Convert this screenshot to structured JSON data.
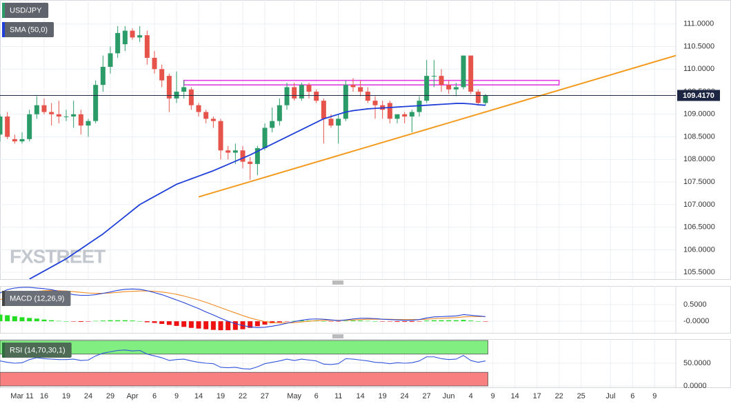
{
  "chart_data": [
    {
      "type": "candlestick",
      "title": "USD/JPY",
      "categories": [
        null,
        null,
        null,
        "Mar 11",
        null,
        null,
        "16",
        null,
        null,
        "19",
        null,
        null,
        "24",
        null,
        null,
        "29",
        null,
        null,
        "Apr",
        null,
        null,
        "6",
        null,
        null,
        "9",
        null,
        null,
        "14",
        null,
        null,
        "19",
        null,
        null,
        "22",
        null,
        null,
        "27",
        null,
        null,
        null,
        "May",
        null,
        null,
        "6",
        null,
        null,
        "11",
        null,
        null,
        "14",
        null,
        null,
        "19",
        null,
        null,
        "24",
        null,
        null,
        "27",
        null,
        null,
        "Jun",
        null,
        null,
        "4",
        null,
        null,
        "9",
        null,
        null,
        "14",
        null,
        null,
        "17",
        null,
        null,
        "22",
        null,
        null,
        "25",
        null,
        null,
        null,
        "Jul",
        null,
        null,
        "6",
        null,
        null,
        "9",
        null,
        null
      ],
      "open": [
        108.55,
        108.95,
        108.45,
        108.4,
        108.45,
        109.0,
        109.2,
        109.05,
        109.0,
        108.95,
        108.95,
        109.0,
        108.75,
        108.85,
        109.65,
        110.05,
        110.35,
        110.55,
        110.85,
        110.7,
        110.75,
        110.25,
        110.0,
        109.85,
        109.35,
        109.5,
        109.55,
        109.2,
        109.05,
        108.9,
        108.85,
        108.2,
        108.15,
        108.2,
        107.95,
        107.9,
        108.25,
        108.7,
        108.85,
        109.2,
        109.6,
        109.35,
        109.65,
        109.5,
        109.3,
        108.9,
        108.75,
        108.9,
        109.65,
        109.6,
        109.5,
        109.3,
        109.2,
        109.25,
        108.9,
        109.0,
        108.95,
        109.05,
        109.3,
        109.85,
        109.85,
        109.65,
        109.55,
        109.6,
        110.3,
        109.5,
        109.25,
        null,
        null,
        null,
        null,
        null,
        null,
        null,
        null,
        null,
        null,
        null,
        null,
        null,
        null,
        null,
        null,
        null,
        null,
        null,
        null,
        null,
        null,
        null,
        null,
        null
      ],
      "high": [
        109.0,
        109.05,
        108.55,
        108.6,
        109.1,
        109.4,
        109.35,
        109.25,
        109.3,
        109.1,
        109.3,
        109.1,
        108.9,
        109.75,
        110.3,
        110.5,
        110.95,
        110.95,
        110.9,
        110.95,
        110.85,
        110.4,
        110.1,
        109.9,
        109.95,
        109.75,
        109.6,
        109.25,
        109.1,
        108.95,
        108.9,
        108.3,
        108.35,
        108.3,
        108.05,
        108.3,
        108.8,
        109.15,
        109.35,
        109.7,
        109.7,
        109.7,
        109.7,
        109.55,
        109.35,
        109.0,
        109.0,
        109.75,
        109.8,
        109.75,
        109.6,
        109.4,
        109.3,
        109.3,
        109.0,
        109.05,
        109.1,
        109.4,
        110.2,
        110.2,
        110.0,
        109.75,
        109.7,
        110.3,
        110.3,
        109.55,
        109.45,
        null,
        null,
        null,
        null,
        null,
        null,
        null,
        null,
        null,
        null,
        null,
        null,
        null,
        null,
        null,
        null,
        null,
        null,
        null,
        null,
        null,
        null,
        null,
        null,
        null
      ],
      "low": [
        108.4,
        108.45,
        108.35,
        108.35,
        108.4,
        108.9,
        109.0,
        108.75,
        108.8,
        108.85,
        108.7,
        108.55,
        108.5,
        108.8,
        109.5,
        109.9,
        110.25,
        110.4,
        110.65,
        110.6,
        110.1,
        109.9,
        109.6,
        109.05,
        109.25,
        109.35,
        109.1,
        108.95,
        108.8,
        108.7,
        108.0,
        108.0,
        107.9,
        107.8,
        107.55,
        107.65,
        108.2,
        108.6,
        108.75,
        109.1,
        109.3,
        109.3,
        109.35,
        109.25,
        108.35,
        108.7,
        108.35,
        108.85,
        109.5,
        109.4,
        109.25,
        108.9,
        108.9,
        108.8,
        108.8,
        108.8,
        108.6,
        108.95,
        109.25,
        109.6,
        109.5,
        109.45,
        109.4,
        109.55,
        109.45,
        109.2,
        109.2,
        null,
        null,
        null,
        null,
        null,
        null,
        null,
        null,
        null,
        null,
        null,
        null,
        null,
        null,
        null,
        null,
        null,
        null,
        null,
        null,
        null,
        null,
        null,
        null,
        null
      ],
      "close": [
        108.95,
        108.5,
        108.4,
        108.45,
        109.0,
        109.2,
        109.05,
        109.0,
        108.95,
        108.95,
        109.0,
        108.75,
        108.85,
        109.65,
        110.05,
        110.35,
        110.8,
        110.85,
        110.7,
        110.75,
        110.25,
        110.0,
        109.75,
        109.35,
        109.5,
        109.6,
        109.2,
        109.05,
        108.9,
        108.85,
        108.2,
        108.15,
        108.2,
        107.95,
        107.9,
        108.25,
        108.7,
        108.85,
        109.2,
        109.6,
        109.35,
        109.65,
        109.5,
        109.3,
        108.9,
        108.75,
        108.9,
        109.65,
        109.6,
        109.5,
        109.3,
        109.2,
        109.1,
        108.9,
        109.0,
        108.95,
        109.05,
        109.3,
        109.85,
        109.85,
        109.65,
        109.55,
        109.6,
        110.3,
        109.5,
        109.25,
        109.42,
        null,
        null,
        null,
        null,
        null,
        null,
        null,
        null,
        null,
        null,
        null,
        null,
        null,
        null,
        null,
        null,
        null,
        null,
        null,
        null,
        null,
        null,
        null,
        null,
        null
      ],
      "up_color": "#2b9b68",
      "down_color": "#e5534b",
      "ylim": [
        105.35,
        111.53
      ],
      "yticks": [
        {
          "value": 105.5,
          "label": "105.5000"
        },
        {
          "value": 106,
          "label": "106.0000"
        },
        {
          "value": 106.5,
          "label": "106.5000"
        },
        {
          "value": 107,
          "label": "107.0000"
        },
        {
          "value": 107.5,
          "label": "107.5000"
        },
        {
          "value": 108,
          "label": "108.0000"
        },
        {
          "value": 108.5,
          "label": "108.5000"
        },
        {
          "value": 109,
          "label": "109.0000"
        },
        {
          "value": 109.5,
          "label": "109.5000"
        },
        {
          "value": 110,
          "label": "110.0000"
        },
        {
          "value": 110.5,
          "label": "110.5000"
        },
        {
          "value": 111,
          "label": "111.0000"
        }
      ],
      "grid": true,
      "overlays": [
        {
          "name": "SMA (50,0)",
          "color": "#1f3fd8",
          "values": [
            null,
            null,
            null,
            null,
            105.35,
            105.44,
            105.53,
            105.62,
            105.71,
            105.8,
            105.91,
            106.02,
            106.13,
            106.24,
            106.35,
            106.48,
            106.61,
            106.74,
            106.87,
            107.0,
            107.09,
            107.18,
            107.27,
            107.36,
            107.45,
            107.51,
            107.57,
            107.63,
            107.69,
            107.75,
            107.82,
            107.89,
            107.96,
            108.03,
            108.1,
            108.18,
            108.26,
            108.34,
            108.42,
            108.5,
            108.58,
            108.66,
            108.74,
            108.82,
            108.9,
            108.95,
            109.0,
            109.05,
            109.08,
            109.1,
            109.12,
            109.13,
            109.14,
            109.15,
            109.16,
            109.17,
            109.18,
            109.19,
            109.2,
            109.21,
            109.22,
            109.23,
            109.24,
            109.24,
            109.23,
            109.21,
            109.2,
            null,
            null,
            null,
            null,
            null,
            null,
            null,
            null,
            null,
            null,
            null,
            null,
            null,
            null,
            null,
            null,
            null,
            null,
            null,
            null,
            null,
            null,
            null,
            null,
            null
          ]
        }
      ],
      "last_price": {
        "value": 109.417,
        "label": "109.4170",
        "color": "#1c2541"
      },
      "resistance": {
        "upper": 109.75,
        "lower": 109.65,
        "color": "#e33be3"
      },
      "trendline": {
        "color": "#f39a1e",
        "values": [
          107.17,
          110.3
        ]
      },
      "watermark": "FXSTREET"
    },
    {
      "type": "macd",
      "title": "MACD (12,26,9)",
      "ylim": [
        -0.35,
        1.06
      ],
      "yticks": [
        {
          "value": 0.5,
          "label": "0.5000"
        },
        {
          "value": 0,
          "label": "-0.0000"
        }
      ],
      "macd": {
        "color": "#2443d6",
        "values": [
          0.85,
          0.95,
          1.0,
          1.02,
          1.02,
          1.0,
          0.98,
          0.95,
          0.9,
          0.85,
          0.8,
          0.78,
          0.78,
          0.8,
          0.84,
          0.88,
          0.93,
          0.96,
          0.97,
          0.96,
          0.92,
          0.86,
          0.8,
          0.72,
          0.64,
          0.56,
          0.47,
          0.38,
          0.28,
          0.19,
          0.09,
          0.0,
          -0.07,
          -0.13,
          -0.17,
          -0.19,
          -0.18,
          -0.15,
          -0.11,
          -0.06,
          -0.01,
          0.03,
          0.06,
          0.07,
          0.06,
          0.04,
          0.02,
          0.04,
          0.07,
          0.09,
          0.09,
          0.08,
          0.06,
          0.05,
          0.04,
          0.03,
          0.03,
          0.05,
          0.1,
          0.13,
          0.14,
          0.15,
          0.16,
          0.2,
          0.18,
          0.16,
          0.14,
          null,
          null,
          null,
          null,
          null,
          null,
          null,
          null,
          null,
          null,
          null,
          null,
          null,
          null,
          null,
          null,
          null,
          null,
          null,
          null,
          null,
          null,
          null,
          null,
          null
        ]
      },
      "signal": {
        "color": "#f08a24",
        "values": [
          0.65,
          0.72,
          0.78,
          0.83,
          0.87,
          0.9,
          0.92,
          0.93,
          0.92,
          0.91,
          0.89,
          0.87,
          0.85,
          0.84,
          0.84,
          0.85,
          0.87,
          0.89,
          0.9,
          0.91,
          0.91,
          0.9,
          0.88,
          0.85,
          0.81,
          0.76,
          0.7,
          0.64,
          0.57,
          0.49,
          0.41,
          0.33,
          0.25,
          0.17,
          0.1,
          0.04,
          -0.01,
          -0.04,
          -0.05,
          -0.05,
          -0.04,
          -0.02,
          0.0,
          0.02,
          0.03,
          0.03,
          0.03,
          0.03,
          0.04,
          0.05,
          0.06,
          0.06,
          0.06,
          0.06,
          0.05,
          0.05,
          0.05,
          0.05,
          0.06,
          0.08,
          0.09,
          0.1,
          0.11,
          0.13,
          0.14,
          0.14,
          0.14,
          null,
          null,
          null,
          null,
          null,
          null,
          null,
          null,
          null,
          null,
          null,
          null,
          null,
          null,
          null,
          null,
          null,
          null,
          null,
          null,
          null,
          null,
          null,
          null,
          null
        ]
      },
      "histogram": {
        "up_color": "#22dd22",
        "down_color": "#ee1111",
        "values": [
          0.2,
          0.18,
          0.15,
          0.12,
          0.1,
          0.08,
          0.05,
          0.03,
          0.01,
          0.0,
          -0.01,
          -0.02,
          -0.01,
          0.01,
          0.02,
          0.03,
          0.03,
          0.03,
          0.02,
          0.0,
          -0.03,
          -0.05,
          -0.08,
          -0.11,
          -0.14,
          -0.17,
          -0.2,
          -0.22,
          -0.24,
          -0.26,
          -0.27,
          -0.27,
          -0.26,
          -0.24,
          -0.2,
          -0.15,
          -0.1,
          -0.06,
          -0.03,
          -0.01,
          0.01,
          0.02,
          0.02,
          0.01,
          0.0,
          -0.01,
          -0.01,
          0.01,
          0.02,
          0.02,
          0.01,
          0.0,
          -0.01,
          -0.01,
          -0.02,
          -0.02,
          -0.02,
          -0.01,
          0.02,
          0.03,
          0.03,
          0.03,
          0.03,
          0.04,
          0.02,
          0.0,
          -0.01,
          null,
          null,
          null,
          null,
          null,
          null,
          null,
          null,
          null,
          null,
          null,
          null,
          null,
          null,
          null,
          null,
          null,
          null,
          null,
          null,
          null,
          null,
          null,
          null,
          null
        ]
      }
    },
    {
      "type": "rsi",
      "title": "RSI (14,70,30,1)",
      "ylim": [
        -3,
        103
      ],
      "yticks": [
        {
          "value": 50,
          "label": "50.0000"
        },
        {
          "value": 0,
          "label": "0.0000"
        }
      ],
      "color": "#3355dd",
      "bands": [
        {
          "from": 70,
          "to": 100,
          "color": "#80ee80"
        },
        {
          "from": 0,
          "to": 30,
          "color": "#f88080"
        }
      ],
      "values": [
        55,
        52,
        50,
        51,
        58,
        62,
        60,
        59,
        58,
        58,
        59,
        56,
        57,
        66,
        72,
        75,
        78,
        79,
        77,
        78,
        70,
        66,
        62,
        56,
        58,
        59,
        55,
        52,
        50,
        49,
        41,
        40,
        41,
        38,
        37,
        42,
        49,
        52,
        55,
        59,
        56,
        59,
        57,
        55,
        48,
        47,
        49,
        60,
        59,
        57,
        55,
        52,
        51,
        49,
        51,
        50,
        51,
        55,
        64,
        64,
        60,
        58,
        59,
        67,
        56,
        52,
        55,
        null,
        null,
        null,
        null,
        null,
        null,
        null,
        null,
        null,
        null,
        null,
        null,
        null,
        null,
        null,
        null,
        null,
        null,
        null,
        null,
        null,
        null,
        null,
        null,
        null
      ]
    }
  ]
}
